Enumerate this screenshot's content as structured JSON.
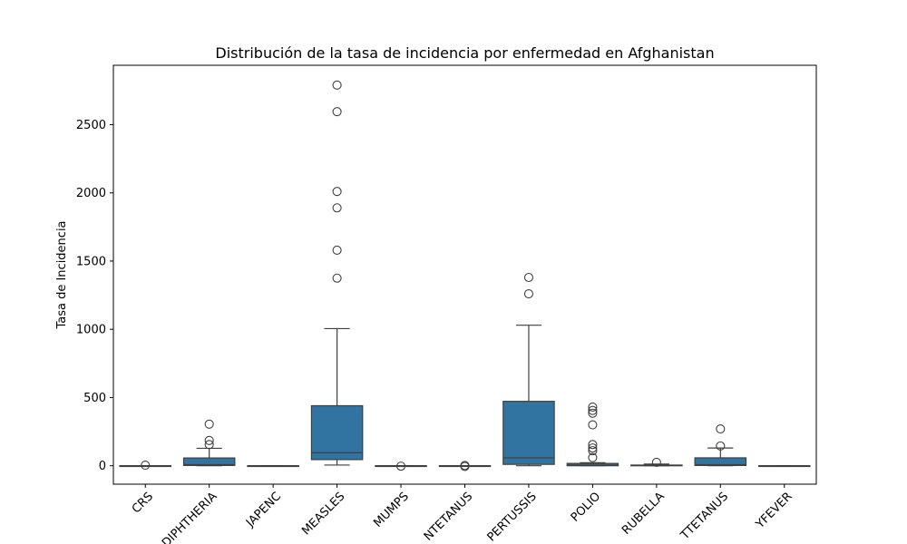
{
  "chart_data": {
    "type": "box",
    "title": "Distribución de la tasa de incidencia por enfermedad en Afghanistan",
    "xlabel": "",
    "ylabel": "Tasa de Incidencia",
    "ylim": [
      -135,
      2935
    ],
    "yticks": [
      0,
      500,
      1000,
      1500,
      2000,
      2500
    ],
    "grid": false,
    "legend": "none",
    "box_color": "#3274a1",
    "line_color": "#3f3f3f",
    "categories": [
      "CRS",
      "DIPHTHERIA",
      "JAPENC",
      "MEASLES",
      "MUMPS",
      "NTETANUS",
      "PERTUSSIS",
      "POLIO",
      "RUBELLA",
      "TTETANUS",
      "YFEVER"
    ],
    "boxes": [
      {
        "name": "CRS",
        "whislo": 0,
        "q1": 0,
        "med": 0,
        "q3": 0,
        "whishi": 0,
        "fliers": [
          4
        ]
      },
      {
        "name": "DIPHTHERIA",
        "whislo": 0,
        "q1": 2,
        "med": 8,
        "q3": 57,
        "whishi": 128,
        "fliers": [
          155,
          185,
          305
        ]
      },
      {
        "name": "JAPENC",
        "whislo": 0,
        "q1": 0,
        "med": 0,
        "q3": 0,
        "whishi": 0,
        "fliers": []
      },
      {
        "name": "MEASLES",
        "whislo": 5,
        "q1": 45,
        "med": 95,
        "q3": 440,
        "whishi": 1005,
        "fliers": [
          1375,
          1580,
          1890,
          2010,
          2595,
          2790
        ]
      },
      {
        "name": "MUMPS",
        "whislo": 0,
        "q1": 0,
        "med": 0,
        "q3": 0,
        "whishi": 0,
        "fliers": [
          -3
        ]
      },
      {
        "name": "NTETANUS",
        "whislo": 0,
        "q1": 0,
        "med": 0,
        "q3": 0,
        "whishi": 0,
        "fliers": [
          -5,
          2
        ]
      },
      {
        "name": "PERTUSSIS",
        "whislo": 0,
        "q1": 10,
        "med": 58,
        "q3": 472,
        "whishi": 1030,
        "fliers": [
          1260,
          1380
        ]
      },
      {
        "name": "POLIO",
        "whislo": 0,
        "q1": 0,
        "med": 5,
        "q3": 17,
        "whishi": 22,
        "fliers": [
          60,
          110,
          130,
          155,
          300,
          385,
          405,
          430
        ]
      },
      {
        "name": "RUBELLA",
        "whislo": 0,
        "q1": 0,
        "med": 2,
        "q3": 5,
        "whishi": 12,
        "fliers": [
          25
        ]
      },
      {
        "name": "TTETANUS",
        "whislo": 0,
        "q1": 2,
        "med": 8,
        "q3": 58,
        "whishi": 130,
        "fliers": [
          145,
          270
        ]
      },
      {
        "name": "YFEVER",
        "whislo": 0,
        "q1": 0,
        "med": 0,
        "q3": 0,
        "whishi": 0,
        "fliers": []
      }
    ]
  }
}
